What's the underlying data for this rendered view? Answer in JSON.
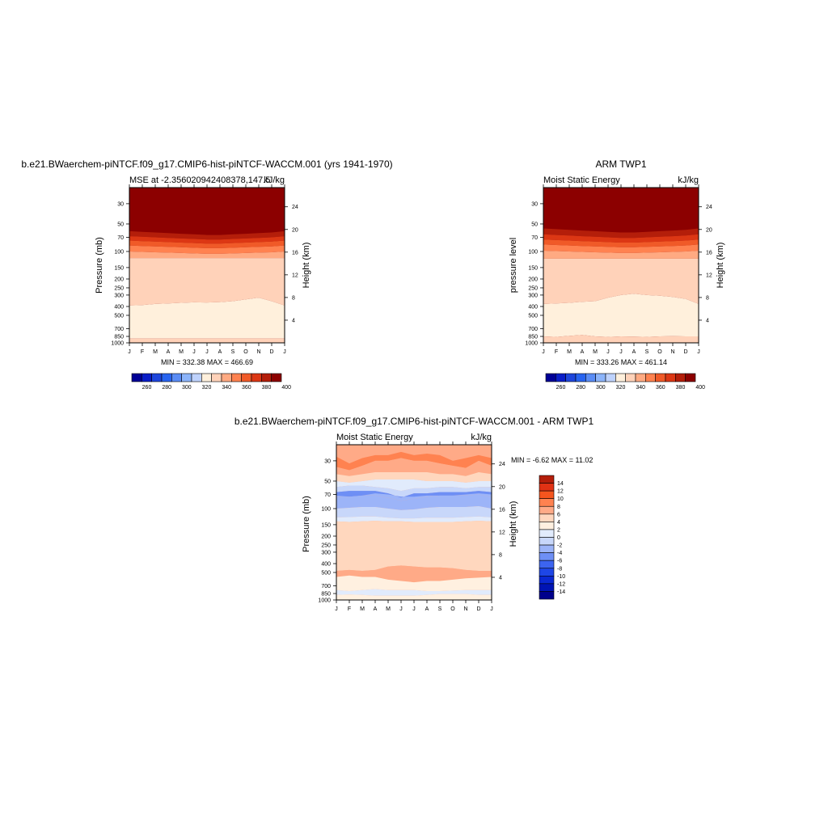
{
  "months": [
    "J",
    "F",
    "M",
    "A",
    "M",
    "J",
    "J",
    "A",
    "S",
    "O",
    "N",
    "D",
    "J"
  ],
  "pressure_ticks": [
    30,
    50,
    70,
    100,
    150,
    200,
    250,
    300,
    400,
    500,
    700,
    850,
    1000
  ],
  "height_ticks": [
    4,
    8,
    12,
    16,
    20,
    24
  ],
  "colors": {
    "mse_scale": [
      "#000096",
      "#0a1ec8",
      "#1e46dc",
      "#2864f0",
      "#5a8cf5",
      "#8cb4fa",
      "#bed2fc",
      "#fff0dc",
      "#ffd2b9",
      "#ffaa82",
      "#ff8250",
      "#f05a28",
      "#dc3714",
      "#b41e0a",
      "#8c0000"
    ],
    "diff_scale": [
      "#00008c",
      "#0014b4",
      "#0a28d2",
      "#1e46e6",
      "#3c64f0",
      "#6e8ff5",
      "#9cb4f8",
      "#c8d7fa",
      "#e1ebfc",
      "#fff0e0",
      "#ffd7be",
      "#ffaa87",
      "#ff8250",
      "#f5551e",
      "#e13214",
      "#b41e0a",
      "#8c0000"
    ]
  },
  "panels": {
    "model": {
      "title": "b.e21.BWaerchem-piNTCF.f09_g17.CMIP6-hist-piNTCF-WACCM.001 (yrs 1941-1970)",
      "left_label": "MSE at -2.356020942408378,147.5",
      "right_label": "kJ/kg",
      "ylabel": "Pressure (mb)",
      "y2label": "Height (km)",
      "minmax": "MIN = 332.38 MAX = 466.69"
    },
    "obs": {
      "title": "ARM TWP1",
      "left_label": "Moist Static Energy",
      "right_label": "kJ/kg",
      "ylabel": "pressure level",
      "y2label": "Height (km)",
      "minmax": "MIN = 333.26 MAX = 461.14"
    },
    "diff": {
      "title": "b.e21.BWaerchem-piNTCF.f09_g17.CMIP6-hist-piNTCF-WACCM.001 - ARM TWP1",
      "left_label": "Moist Static Energy",
      "right_label": "kJ/kg",
      "ylabel": "Pressure (mb)",
      "y2label": "Height (km)",
      "minmax": "MIN =  -6.62 MAX =  11.02"
    }
  },
  "chart_data": [
    {
      "type": "heatmap",
      "title": "b.e21.BWaerchem-piNTCF.f09_g17.CMIP6-hist-piNTCF-WACCM.001 (yrs 1941-1970)",
      "subtitle": "MSE at -2.356020942408378,147.5",
      "units": "kJ/kg",
      "ylabel": "Pressure (mb)",
      "y2label": "Height (km)",
      "x": [
        "J",
        "F",
        "M",
        "A",
        "M",
        "J",
        "J",
        "A",
        "S",
        "O",
        "N",
        "D",
        "J"
      ],
      "ylim": [
        1000,
        20
      ],
      "y_scale": "log",
      "min": 332.38,
      "max": 466.69,
      "colorbar_labels": [
        260,
        280,
        300,
        320,
        340,
        360,
        380,
        400
      ]
    },
    {
      "type": "heatmap",
      "title": "ARM TWP1",
      "subtitle": "Moist Static Energy",
      "units": "kJ/kg",
      "ylabel": "pressure level",
      "y2label": "Height (km)",
      "x": [
        "J",
        "F",
        "M",
        "A",
        "M",
        "J",
        "J",
        "A",
        "S",
        "O",
        "N",
        "D",
        "J"
      ],
      "ylim": [
        1000,
        20
      ],
      "y_scale": "log",
      "min": 333.26,
      "max": 461.14,
      "colorbar_labels": [
        260,
        280,
        300,
        320,
        340,
        360,
        380,
        400
      ]
    },
    {
      "type": "heatmap",
      "title": "b.e21.BWaerchem-piNTCF.f09_g17.CMIP6-hist-piNTCF-WACCM.001 - ARM TWP1",
      "subtitle": "Moist Static Energy",
      "units": "kJ/kg",
      "ylabel": "Pressure (mb)",
      "y2label": "Height (km)",
      "x": [
        "J",
        "F",
        "M",
        "A",
        "M",
        "J",
        "J",
        "A",
        "S",
        "O",
        "N",
        "D",
        "J"
      ],
      "ylim": [
        1000,
        20
      ],
      "y_scale": "log",
      "min": -6.62,
      "max": 11.02,
      "colorbar_labels": [
        14,
        12,
        10,
        8,
        6,
        4,
        2,
        0,
        -2,
        -4,
        -6,
        -8,
        -10,
        -12,
        -14
      ]
    }
  ]
}
